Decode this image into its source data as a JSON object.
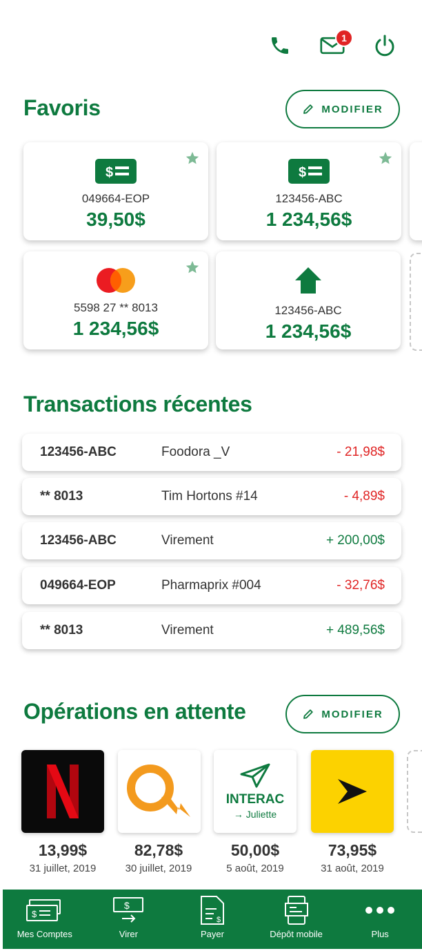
{
  "header": {
    "phone_icon": "phone-icon",
    "mail_icon": "mail-icon",
    "mail_badge": "1",
    "power_icon": "power-icon"
  },
  "favorites": {
    "title": "Favoris",
    "modify_label": "MODIFIER",
    "cards": [
      {
        "account": "049664-EOP",
        "amount": "39,50$",
        "icon": "cash-icon",
        "starred": true
      },
      {
        "account": "123456-ABC",
        "amount": "1 234,56$",
        "icon": "cash-icon",
        "starred": true
      },
      {
        "account": "5598 27 ** 8013",
        "amount": "1 234,56$",
        "icon": "mastercard-icon",
        "starred": true
      },
      {
        "account": "123456-ABC",
        "amount": "1 234,56$",
        "icon": "house-icon",
        "starred": false
      }
    ]
  },
  "transactions": {
    "title": "Transactions récentes",
    "rows": [
      {
        "account": "123456-ABC",
        "description": "Foodora _V",
        "amount": "- 21,98$",
        "type": "debit"
      },
      {
        "account": "** 8013",
        "description": "Tim Hortons #14",
        "amount": "- 4,89$",
        "type": "debit"
      },
      {
        "account": "123456-ABC",
        "description": "Virement",
        "amount": "+ 200,00$",
        "type": "credit"
      },
      {
        "account": "049664-EOP",
        "description": "Pharmaprix #004",
        "amount": "- 32,76$",
        "type": "debit"
      },
      {
        "account": "** 8013",
        "description": "Virement",
        "amount": "+ 489,56$",
        "type": "credit"
      }
    ]
  },
  "pending": {
    "title": "Opérations en attente",
    "modify_label": "MODIFIER",
    "items": [
      {
        "logo": "netflix-logo",
        "amount": "13,99$",
        "date": "31 juillet, 2019"
      },
      {
        "logo": "hydro-quebec-logo",
        "amount": "82,78$",
        "date": "30 juillet, 2019"
      },
      {
        "logo": "interac-logo",
        "interac_label": "INTERAC",
        "interac_recipient": "→ Juliette",
        "amount": "50,00$",
        "date": "5 août, 2019"
      },
      {
        "logo": "videotron-logo",
        "amount": "73,95$",
        "date": "31 août, 2019"
      }
    ]
  },
  "nav": {
    "items": [
      {
        "label": "Mes Comptes",
        "icon": "accounts-icon"
      },
      {
        "label": "Virer",
        "icon": "transfer-icon"
      },
      {
        "label": "Payer",
        "icon": "pay-icon"
      },
      {
        "label": "Dépôt mobile",
        "icon": "mobile-deposit-icon"
      },
      {
        "label": "Plus",
        "icon": "more-icon"
      }
    ]
  },
  "colors": {
    "brand_green": "#0e7a3f",
    "debit_red": "#e02424",
    "star_green": "#7dba95"
  }
}
